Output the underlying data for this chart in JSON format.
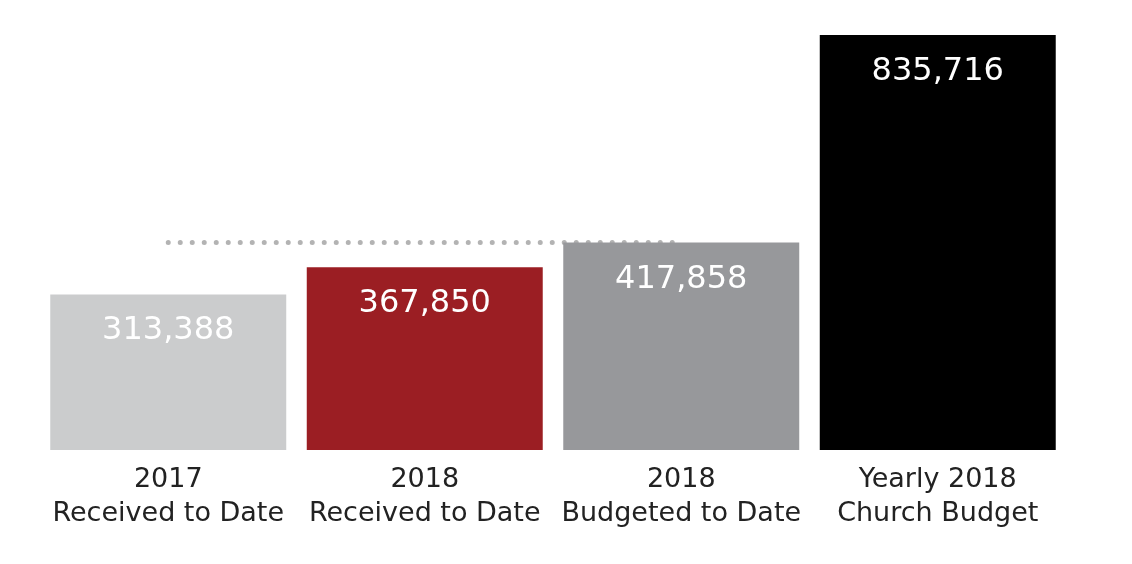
{
  "chart_data": {
    "type": "bar",
    "categories": [
      "2017\nReceived to Date",
      "2018\nReceived to Date",
      "2018\nBudgeted to Date",
      "Yearly 2018\nChurch Budget"
    ],
    "values": [
      313388,
      367850,
      417858,
      835716
    ],
    "colors": [
      "#cbcccd",
      "#9b1e23",
      "#97989b",
      "#000000"
    ],
    "value_labels": [
      "313,388",
      "367,850",
      "417,858",
      "835,716"
    ],
    "ref_lines": [
      {
        "axis": "y",
        "value": 417858,
        "label": null,
        "color": "#b3b3b3",
        "line_style": "dotted"
      }
    ]
  }
}
